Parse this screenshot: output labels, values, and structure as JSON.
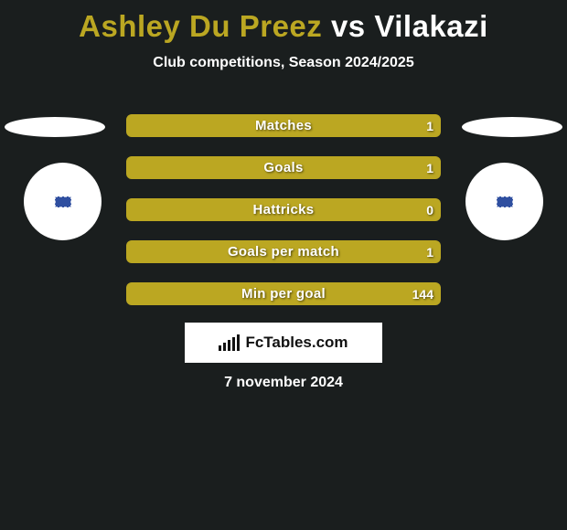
{
  "title": {
    "player1": "Ashley Du Preez",
    "vs": "vs",
    "player2": "Vilakazi"
  },
  "subtitle": "Club competitions, Season 2024/2025",
  "palette": {
    "background": "#1a1e1e",
    "accent": "#bba722",
    "white": "#ffffff",
    "flag": "#2f4fa0"
  },
  "platforms": {
    "left_color": "#ffffff",
    "right_color": "#ffffff"
  },
  "avatars": {
    "left_flag_color": "#2f4fa0",
    "right_flag_color": "#2f4fa0"
  },
  "bars": {
    "bar_background": "#bba722",
    "items": [
      {
        "label": "Matches",
        "left": "",
        "right": "1"
      },
      {
        "label": "Goals",
        "left": "",
        "right": "1"
      },
      {
        "label": "Hattricks",
        "left": "",
        "right": "0"
      },
      {
        "label": "Goals per match",
        "left": "",
        "right": "1"
      },
      {
        "label": "Min per goal",
        "left": "",
        "right": "144"
      }
    ]
  },
  "fctables": {
    "text": "FcTables.com",
    "logo_bar_heights": [
      6,
      9,
      12,
      15,
      18
    ]
  },
  "date": "7 november 2024"
}
